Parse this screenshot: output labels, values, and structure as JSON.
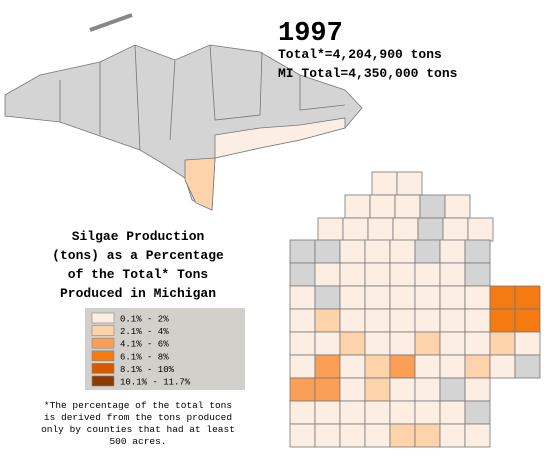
{
  "title": "1997",
  "totals": [
    "Total*=4,204,900 tons",
    "MI Total=4,350,000 tons"
  ],
  "heading": [
    "Silgae Production",
    "(tons) as a Percentage",
    "of the Total* Tons",
    "Produced in Michigan"
  ],
  "legend": [
    {
      "label": "0.1% - 2%",
      "color": "#fdeee4"
    },
    {
      "label": "2.1% - 4%",
      "color": "#fdd3ac"
    },
    {
      "label": "4.1% - 6%",
      "color": "#fb9e56"
    },
    {
      "label": "6.1% - 8%",
      "color": "#f57a12"
    },
    {
      "label": "8.1% - 10%",
      "color": "#d65a02"
    },
    {
      "label": "10.1% - 11.7%",
      "color": "#8c3b02"
    }
  ],
  "footnote": [
    "*The percentage of the total tons",
    "is derived from the tons produced",
    "only by counties that had at least",
    "500 acres."
  ]
}
